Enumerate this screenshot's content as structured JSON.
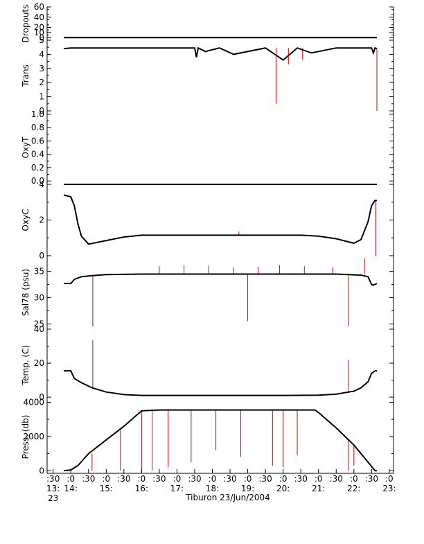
{
  "figure": {
    "caption": "Tiburon 23/Jun/2004",
    "x_ticks": [
      {
        "t": 13.5,
        "top": ":30",
        "mid": "13:",
        "bot": "23"
      },
      {
        "t": 14.0,
        "top": ":0",
        "mid": "14:",
        "bot": ""
      },
      {
        "t": 14.5,
        "top": ":30",
        "mid": "",
        "bot": ""
      },
      {
        "t": 15.0,
        "top": ":0",
        "mid": "15:",
        "bot": ""
      },
      {
        "t": 15.5,
        "top": ":30",
        "mid": "",
        "bot": ""
      },
      {
        "t": 16.0,
        "top": ":0",
        "mid": "16:",
        "bot": ""
      },
      {
        "t": 16.5,
        "top": ":30",
        "mid": "",
        "bot": ""
      },
      {
        "t": 17.0,
        "top": ":0",
        "mid": "17:",
        "bot": ""
      },
      {
        "t": 17.5,
        "top": ":30",
        "mid": "",
        "bot": ""
      },
      {
        "t": 18.0,
        "top": ":0",
        "mid": "18:",
        "bot": ""
      },
      {
        "t": 18.5,
        "top": ":30",
        "mid": "",
        "bot": ""
      },
      {
        "t": 19.0,
        "top": ":0",
        "mid": "19:",
        "bot": ""
      },
      {
        "t": 19.5,
        "top": ":30",
        "mid": "",
        "bot": ""
      },
      {
        "t": 20.0,
        "top": ":0",
        "mid": "20:",
        "bot": ""
      },
      {
        "t": 20.5,
        "top": ":30",
        "mid": "",
        "bot": ""
      },
      {
        "t": 21.0,
        "top": ":0",
        "mid": "21:",
        "bot": ""
      },
      {
        "t": 21.5,
        "top": ":30",
        "mid": "",
        "bot": ""
      },
      {
        "t": 22.0,
        "top": ":0",
        "mid": "22:",
        "bot": ""
      },
      {
        "t": 22.5,
        "top": ":30",
        "mid": "",
        "bot": ""
      },
      {
        "t": 23.0,
        "top": ":0",
        "mid": "23:",
        "bot": ""
      }
    ],
    "colors": {
      "line": "#000000",
      "spike": "#e00000",
      "axis": "#000000"
    }
  },
  "chart_data": [
    {
      "type": "line",
      "ylabel": "Dropouts",
      "xlim": [
        13.33,
        23.12
      ],
      "ylim": [
        -5,
        60
      ],
      "yticks": [
        {
          "v": 0,
          "l": "0"
        },
        {
          "v": 10,
          "l": "10"
        },
        {
          "v": 20,
          "l": "20"
        },
        {
          "v": 40,
          "l": "40"
        },
        {
          "v": 60,
          "l": "60"
        }
      ],
      "series": [
        {
          "x": [
            13.8,
            22.65
          ],
          "y": [
            0,
            0
          ]
        }
      ],
      "spikes": []
    },
    {
      "type": "line",
      "ylabel": "Trans",
      "xlim": [
        13.33,
        23.12
      ],
      "ylim": [
        0,
        5
      ],
      "yticks": [
        {
          "v": 0,
          "l": "0"
        },
        {
          "v": 1,
          "l": "1"
        },
        {
          "v": 2,
          "l": "2"
        },
        {
          "v": 3,
          "l": "3"
        },
        {
          "v": 4,
          "l": "4"
        },
        {
          "v": 5,
          "l": "5"
        }
      ],
      "series": [
        {
          "x": [
            13.8,
            14.0,
            16.0,
            17.5,
            17.55,
            17.6,
            17.8,
            18.2,
            18.6,
            19.5,
            20.0,
            20.4,
            20.8,
            21.5,
            22.0,
            22.5,
            22.55,
            22.6,
            22.65
          ],
          "y": [
            4.4,
            4.45,
            4.45,
            4.45,
            3.8,
            4.45,
            4.2,
            4.45,
            4.0,
            4.45,
            3.6,
            4.45,
            4.1,
            4.45,
            4.45,
            4.45,
            4.1,
            4.45,
            4.4
          ]
        }
      ],
      "spikes": [
        {
          "x": 19.8,
          "y0": 4.45,
          "y1": 0.5
        },
        {
          "x": 22.65,
          "y0": 4.4,
          "y1": 0.0
        },
        {
          "x": 20.15,
          "y0": 4.45,
          "y1": 3.3
        },
        {
          "x": 20.55,
          "y0": 4.45,
          "y1": 3.6
        }
      ]
    },
    {
      "type": "line",
      "ylabel": "OxyT",
      "xlim": [
        13.33,
        23.12
      ],
      "ylim": [
        -0.05,
        1.05
      ],
      "yticks": [
        {
          "v": 0.0,
          "l": "0.0"
        },
        {
          "v": 0.2,
          "l": "0.2"
        },
        {
          "v": 0.4,
          "l": "0.4"
        },
        {
          "v": 0.6,
          "l": "0.6"
        },
        {
          "v": 0.8,
          "l": "0.8"
        },
        {
          "v": 1.0,
          "l": "1.0"
        }
      ],
      "series": [
        {
          "x": [
            13.8,
            22.65
          ],
          "y": [
            -0.05,
            -0.05
          ]
        }
      ],
      "spikes": []
    },
    {
      "type": "line",
      "ylabel": "OxyC",
      "xlim": [
        13.33,
        23.12
      ],
      "ylim": [
        0,
        4
      ],
      "yticks": [
        {
          "v": 0,
          "l": "0"
        },
        {
          "v": 2,
          "l": "2"
        },
        {
          "v": 4,
          "l": "4"
        }
      ],
      "series": [
        {
          "x": [
            13.8,
            14.0,
            14.1,
            14.2,
            14.3,
            14.5,
            15.0,
            15.5,
            16.0,
            17.0,
            19.0,
            20.5,
            21.0,
            21.5,
            21.8,
            22.0,
            22.2,
            22.4,
            22.5,
            22.6,
            22.65
          ],
          "y": [
            3.4,
            3.3,
            2.8,
            1.8,
            1.1,
            0.65,
            0.85,
            1.05,
            1.15,
            1.15,
            1.15,
            1.15,
            1.1,
            0.95,
            0.8,
            0.7,
            0.9,
            1.9,
            2.8,
            3.1,
            3.1
          ]
        }
      ],
      "spikes": [
        {
          "x": 22.62,
          "y0": 3.1,
          "y1": 0.0
        },
        {
          "x": 18.75,
          "y0": 1.15,
          "y1": 1.35
        }
      ]
    },
    {
      "type": "line",
      "ylabel": "Sal78 (psu)",
      "xlim": [
        13.33,
        23.12
      ],
      "ylim": [
        24,
        38
      ],
      "yticks": [
        {
          "v": 25,
          "l": "25"
        },
        {
          "v": 30,
          "l": "30"
        },
        {
          "v": 35,
          "l": "35"
        }
      ],
      "series": [
        {
          "x": [
            13.8,
            14.0,
            14.1,
            14.3,
            14.6,
            15.0,
            16.0,
            18.0,
            20.0,
            21.5,
            22.2,
            22.4,
            22.5,
            22.55,
            22.65
          ],
          "y": [
            32.7,
            32.7,
            33.5,
            34.0,
            34.2,
            34.4,
            34.5,
            34.5,
            34.5,
            34.5,
            34.3,
            34.0,
            32.5,
            32.4,
            32.7
          ]
        }
      ],
      "spikes": [
        {
          "x": 14.62,
          "y0": 34.2,
          "y1": 24.5
        },
        {
          "x": 19.0,
          "y0": 34.5,
          "y1": 25.5
        },
        {
          "x": 21.85,
          "y0": 34.5,
          "y1": 24.5
        },
        {
          "x": 22.3,
          "y0": 34.5,
          "y1": 37.5
        },
        {
          "x": 16.5,
          "y0": 34.5,
          "y1": 36.0
        },
        {
          "x": 17.2,
          "y0": 34.5,
          "y1": 36.2
        },
        {
          "x": 17.9,
          "y0": 34.5,
          "y1": 36.1
        },
        {
          "x": 18.6,
          "y0": 34.5,
          "y1": 35.8
        },
        {
          "x": 19.3,
          "y0": 34.5,
          "y1": 35.9
        },
        {
          "x": 19.9,
          "y0": 34.5,
          "y1": 36.2
        },
        {
          "x": 20.6,
          "y0": 34.5,
          "y1": 36.0
        },
        {
          "x": 21.4,
          "y0": 34.5,
          "y1": 35.8
        }
      ]
    },
    {
      "type": "line",
      "ylabel": "Temp. (C)",
      "xlim": [
        13.33,
        23.12
      ],
      "ylim": [
        -2,
        40
      ],
      "yticks": [
        {
          "v": 0,
          "l": "0"
        },
        {
          "v": 20,
          "l": "20"
        },
        {
          "v": 40,
          "l": "40"
        }
      ],
      "series": [
        {
          "x": [
            13.8,
            14.0,
            14.1,
            14.3,
            14.6,
            15.0,
            15.5,
            16.0,
            18.0,
            20.0,
            21.0,
            21.5,
            22.0,
            22.2,
            22.4,
            22.5,
            22.6,
            22.65
          ],
          "y": [
            15.5,
            15.5,
            11.0,
            8.5,
            5.5,
            3.0,
            1.5,
            1.0,
            1.0,
            1.0,
            1.2,
            1.8,
            3.5,
            5.5,
            9.0,
            14.0,
            15.5,
            15.5
          ]
        }
      ],
      "spikes": [
        {
          "x": 14.62,
          "y0": 5.5,
          "y1": 33.5
        },
        {
          "x": 21.85,
          "y0": 2.5,
          "y1": 22.0
        }
      ]
    },
    {
      "type": "line",
      "ylabel": "Press. (db)",
      "xlim": [
        13.33,
        23.12
      ],
      "ylim": [
        -150,
        4100
      ],
      "yticks": [
        {
          "v": 0,
          "l": "0"
        },
        {
          "v": 2000,
          "l": "2000"
        },
        {
          "v": 4000,
          "l": "4000"
        }
      ],
      "series": [
        {
          "x": [
            13.8,
            14.0,
            14.2,
            14.5,
            15.0,
            15.5,
            16.0,
            16.5,
            18.0,
            19.5,
            20.9,
            21.0,
            21.5,
            22.0,
            22.4,
            22.6,
            22.65
          ],
          "y": [
            0,
            50,
            300,
            1000,
            1800,
            2600,
            3500,
            3550,
            3550,
            3550,
            3550,
            3400,
            2500,
            1500,
            500,
            0,
            0
          ]
        }
      ],
      "spikes": [
        {
          "x": 14.6,
          "y0": 1000,
          "y1": 0
        },
        {
          "x": 15.4,
          "y0": 2400,
          "y1": 0
        },
        {
          "x": 16.0,
          "y0": 3500,
          "y1": 0
        },
        {
          "x": 16.3,
          "y0": 3550,
          "y1": 0
        },
        {
          "x": 16.75,
          "y0": 3550,
          "y1": 200
        },
        {
          "x": 17.4,
          "y0": 3550,
          "y1": 500
        },
        {
          "x": 18.1,
          "y0": 3550,
          "y1": 1200
        },
        {
          "x": 18.8,
          "y0": 3550,
          "y1": 800
        },
        {
          "x": 19.7,
          "y0": 3550,
          "y1": 300
        },
        {
          "x": 20.0,
          "y0": 3550,
          "y1": 200
        },
        {
          "x": 20.4,
          "y0": 3550,
          "y1": 900
        },
        {
          "x": 21.85,
          "y0": 1800,
          "y1": 0
        },
        {
          "x": 22.0,
          "y0": 1500,
          "y1": 300
        }
      ]
    }
  ]
}
